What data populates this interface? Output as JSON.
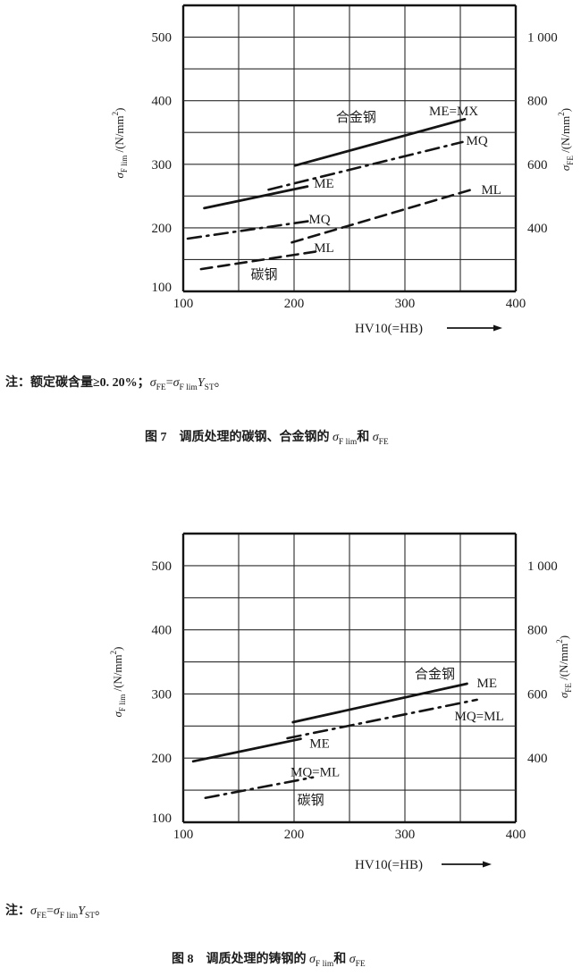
{
  "page": {
    "background": "#ffffff",
    "ink_color": "#1b1b1b",
    "language": "zh-CN"
  },
  "chart_data": [
    {
      "id": "figure7",
      "type": "line",
      "title": "图 7 调质处理的碳钢、合金钢的 σF lim 和 σFE",
      "xlabel": "HV10(=HB)",
      "ylabel": "σF lim /(N/mm²)",
      "ylabel_right": "σFE /(N/mm²)",
      "xlim": [
        100,
        400
      ],
      "ylim": [
        100,
        550
      ],
      "ylim_right_scale": 2,
      "grid": true,
      "x_axis": {
        "title": "HV10(=HB)",
        "arrow": true,
        "min": 100,
        "max": 400,
        "grid_step": 50,
        "ticks": [
          100,
          200,
          300,
          400
        ],
        "tick_labels": [
          "100",
          "200",
          "300",
          "400"
        ]
      },
      "y_left": {
        "min": 100,
        "max": 550,
        "grid_step": 50,
        "ticks": [
          100,
          200,
          300,
          400,
          500
        ],
        "tick_labels": [
          "100",
          "200",
          "300",
          "400",
          "500"
        ],
        "title_parts": [
          {
            "t": "σ",
            "style": "italic"
          },
          {
            "t": "F lim",
            "style": "sub"
          },
          {
            "t": " /(N/mm",
            "style": "base"
          },
          {
            "t": "2",
            "style": "sup"
          },
          {
            "t": ")",
            "style": "base"
          }
        ]
      },
      "y_right": {
        "scale": 2,
        "ticks": [
          400,
          600,
          800,
          1000
        ],
        "tick_labels": [
          "400",
          "600",
          "800",
          "1 000"
        ],
        "title_parts": [
          {
            "t": "σ",
            "style": "italic"
          },
          {
            "t": "FE",
            "style": "sub"
          },
          {
            "t": " /(N/mm",
            "style": "base"
          },
          {
            "t": "2",
            "style": "sup"
          },
          {
            "t": ")",
            "style": "base"
          }
        ]
      },
      "series": [
        {
          "name": "alloy-ME-MX",
          "group": "合金钢",
          "label": "ME=MX",
          "style": "solid",
          "points": [
            [
              201,
              298
            ],
            [
              354,
              371
            ]
          ]
        },
        {
          "name": "alloy-MQ",
          "group": "合金钢",
          "label": "MQ",
          "style": "dashdot",
          "points": [
            [
              177,
              260
            ],
            [
              352,
              335
            ]
          ]
        },
        {
          "name": "alloy-ML",
          "group": "合金钢",
          "label": "ML",
          "style": "dashed",
          "points": [
            [
              198,
              177
            ],
            [
              360,
              260
            ]
          ]
        },
        {
          "name": "carbon-ME",
          "group": "碳钢",
          "label": "ME",
          "style": "solid",
          "points": [
            [
              119,
              231
            ],
            [
              212,
              265
            ]
          ]
        },
        {
          "name": "carbon-MQ",
          "group": "碳钢",
          "label": "MQ",
          "style": "dashdot",
          "points": [
            [
              104,
              183
            ],
            [
              215,
              211
            ]
          ]
        },
        {
          "name": "carbon-ML",
          "group": "碳钢",
          "label": "ML",
          "style": "dashed",
          "points": [
            [
              116,
              135
            ],
            [
              221,
              163
            ]
          ]
        }
      ],
      "annotations": [
        {
          "text": "合金钢",
          "x": 256,
          "y": 374,
          "name": "label-alloy-group"
        },
        {
          "text": "ME=MX",
          "x": 344,
          "y": 384,
          "name": "label-alloy-ME-MX"
        },
        {
          "text": "MQ",
          "x": 365,
          "y": 338,
          "name": "label-alloy-MQ"
        },
        {
          "text": "ML",
          "x": 378,
          "y": 260,
          "name": "label-alloy-ML"
        },
        {
          "text": "ME",
          "x": 227,
          "y": 270,
          "name": "label-carbon-ME"
        },
        {
          "text": "MQ",
          "x": 223,
          "y": 214,
          "name": "label-carbon-MQ"
        },
        {
          "text": "ML",
          "x": 227,
          "y": 169,
          "name": "label-carbon-ML"
        },
        {
          "text": "碳钢",
          "x": 173,
          "y": 127,
          "name": "label-carbon-group"
        }
      ]
    },
    {
      "id": "figure8",
      "type": "line",
      "title": "图 8 调质处理的铸钢的 σF lim 和 σFE",
      "xlabel": "HV10(=HB)",
      "ylabel": "σF lim /(N/mm²)",
      "ylabel_right": "σFE /(N/mm²)",
      "xlim": [
        100,
        400
      ],
      "ylim": [
        100,
        550
      ],
      "ylim_right_scale": 2,
      "grid": true,
      "x_axis": {
        "title": "HV10(=HB)",
        "arrow": true,
        "min": 100,
        "max": 400,
        "grid_step": 50,
        "ticks": [
          100,
          200,
          300,
          400
        ],
        "tick_labels": [
          "100",
          "200",
          "300",
          "400"
        ]
      },
      "y_left": {
        "min": 100,
        "max": 550,
        "grid_step": 50,
        "ticks": [
          100,
          200,
          300,
          400,
          500
        ],
        "tick_labels": [
          "100",
          "200",
          "300",
          "400",
          "500"
        ],
        "title_parts": [
          {
            "t": "σ",
            "style": "italic"
          },
          {
            "t": "F lim",
            "style": "sub"
          },
          {
            "t": " /(N/mm",
            "style": "base"
          },
          {
            "t": "2",
            "style": "sup"
          },
          {
            "t": ")",
            "style": "base"
          }
        ]
      },
      "y_right": {
        "scale": 2,
        "ticks": [
          400,
          600,
          800,
          1000
        ],
        "tick_labels": [
          "400",
          "600",
          "800",
          "1 000"
        ],
        "title_parts": [
          {
            "t": "σ",
            "style": "italic"
          },
          {
            "t": "FE",
            "style": "sub"
          },
          {
            "t": " /(N/mm",
            "style": "base"
          },
          {
            "t": "2",
            "style": "sup"
          },
          {
            "t": ")",
            "style": "base"
          }
        ]
      },
      "series": [
        {
          "name": "alloy-ME",
          "group": "合金钢",
          "label": "ME",
          "style": "solid",
          "points": [
            [
              199,
              256
            ],
            [
              356,
              316
            ]
          ]
        },
        {
          "name": "alloy-MQ-ML",
          "group": "合金钢",
          "label": "MQ=ML",
          "style": "dashdot",
          "points": [
            [
              194,
              231
            ],
            [
              365,
              291
            ]
          ]
        },
        {
          "name": "carbon-ME",
          "group": "碳钢",
          "label": "ME",
          "style": "solid",
          "points": [
            [
              109,
              195
            ],
            [
              206,
              230
            ]
          ]
        },
        {
          "name": "carbon-MQ-ML",
          "group": "碳钢",
          "label": "MQ=ML",
          "style": "dashdot",
          "points": [
            [
              120,
              138
            ],
            [
              217,
              170
            ]
          ]
        }
      ],
      "annotations": [
        {
          "text": "合金钢",
          "x": 327,
          "y": 331,
          "name": "label-alloy-group"
        },
        {
          "text": "ME",
          "x": 374,
          "y": 317,
          "name": "label-alloy-ME"
        },
        {
          "text": "MQ=ML",
          "x": 367,
          "y": 266,
          "name": "label-alloy-MQ-ML"
        },
        {
          "text": "ME",
          "x": 223,
          "y": 223,
          "name": "label-carbon-ME"
        },
        {
          "text": "MQ=ML",
          "x": 219,
          "y": 179,
          "name": "label-carbon-MQ-ML"
        },
        {
          "text": "碳钢",
          "x": 215,
          "y": 135,
          "name": "label-carbon-group"
        }
      ]
    }
  ],
  "figure7": {
    "note_parts": [
      {
        "t": "注：",
        "style": "bold"
      },
      {
        "t": "额定碳含量≥0. 20%；",
        "style": "bold"
      },
      {
        "t": "σ",
        "style": "italic"
      },
      {
        "t": "FE",
        "style": "sub"
      },
      {
        "t": "=",
        "style": "base"
      },
      {
        "t": "σ",
        "style": "italic"
      },
      {
        "t": "F lim",
        "style": "sub"
      },
      {
        "t": "Y",
        "style": "italic"
      },
      {
        "t": "ST",
        "style": "sub"
      },
      {
        "t": "。",
        "style": "base"
      }
    ],
    "caption_parts": [
      {
        "t": "图 7",
        "style": "bold"
      },
      {
        "t": "　调质处理的碳钢、合金钢的 ",
        "style": "bold"
      },
      {
        "t": "σ",
        "style": "italic"
      },
      {
        "t": "F lim",
        "style": "sub"
      },
      {
        "t": "和 ",
        "style": "bold"
      },
      {
        "t": "σ",
        "style": "italic"
      },
      {
        "t": "FE",
        "style": "sub"
      }
    ]
  },
  "figure8": {
    "note_parts": [
      {
        "t": "注：",
        "style": "bold"
      },
      {
        "t": "σ",
        "style": "italic"
      },
      {
        "t": "FE",
        "style": "sub"
      },
      {
        "t": "=",
        "style": "base"
      },
      {
        "t": "σ",
        "style": "italic"
      },
      {
        "t": "F lim",
        "style": "sub"
      },
      {
        "t": "Y",
        "style": "italic"
      },
      {
        "t": "ST",
        "style": "sub"
      },
      {
        "t": "。",
        "style": "base"
      }
    ],
    "caption_parts": [
      {
        "t": "图 8",
        "style": "bold"
      },
      {
        "t": "　调质处理的铸钢的 ",
        "style": "bold"
      },
      {
        "t": "σ",
        "style": "italic"
      },
      {
        "t": "F lim",
        "style": "sub"
      },
      {
        "t": "和 ",
        "style": "bold"
      },
      {
        "t": "σ",
        "style": "italic"
      },
      {
        "t": "FE",
        "style": "sub"
      }
    ]
  }
}
